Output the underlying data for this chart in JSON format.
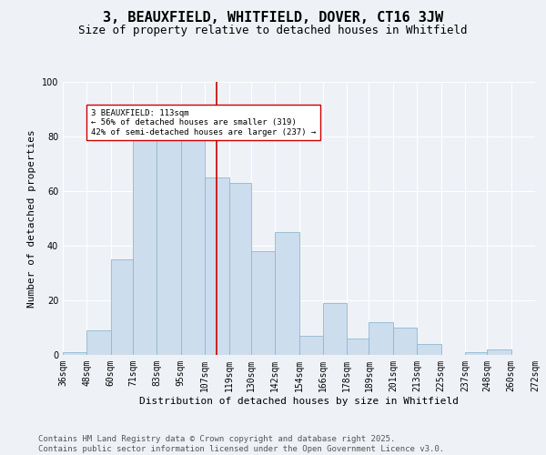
{
  "title": "3, BEAUXFIELD, WHITFIELD, DOVER, CT16 3JW",
  "subtitle": "Size of property relative to detached houses in Whitfield",
  "xlabel": "Distribution of detached houses by size in Whitfield",
  "ylabel": "Number of detached properties",
  "bins": [
    36,
    48,
    60,
    71,
    83,
    95,
    107,
    119,
    130,
    142,
    154,
    166,
    178,
    189,
    201,
    213,
    225,
    237,
    248,
    260,
    272
  ],
  "counts": [
    1,
    9,
    35,
    82,
    79,
    83,
    65,
    63,
    38,
    45,
    7,
    19,
    6,
    12,
    10,
    4,
    0,
    1,
    2,
    0
  ],
  "bar_color": "#ccdded",
  "bar_edge_color": "#90b8d0",
  "property_size": 113,
  "property_line_color": "#cc0000",
  "annotation_text": "3 BEAUXFIELD: 113sqm\n← 56% of detached houses are smaller (319)\n42% of semi-detached houses are larger (237) →",
  "annotation_box_color": "#ffffff",
  "annotation_box_edge": "#cc0000",
  "ylim": [
    0,
    100
  ],
  "background_color": "#eef2f7",
  "footer_text": "Contains HM Land Registry data © Crown copyright and database right 2025.\nContains public sector information licensed under the Open Government Licence v3.0.",
  "title_fontsize": 11,
  "subtitle_fontsize": 9,
  "tick_fontsize": 7,
  "axis_label_fontsize": 8,
  "footer_fontsize": 6.5,
  "tick_labels": [
    "36sqm",
    "48sqm",
    "60sqm",
    "71sqm",
    "83sqm",
    "95sqm",
    "107sqm",
    "119sqm",
    "130sqm",
    "142sqm",
    "154sqm",
    "166sqm",
    "178sqm",
    "189sqm",
    "201sqm",
    "213sqm",
    "225sqm",
    "237sqm",
    "248sqm",
    "260sqm",
    "272sqm"
  ]
}
